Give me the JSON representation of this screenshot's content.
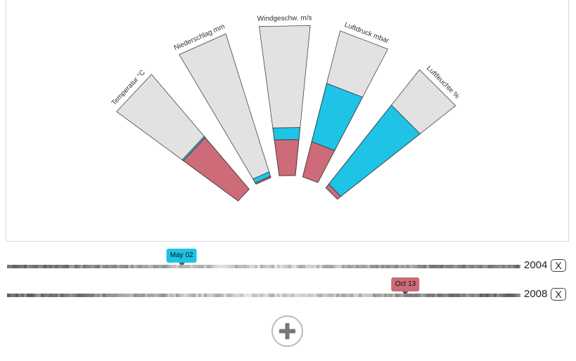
{
  "chart_data": {
    "type": "radial-bar",
    "axes": [
      {
        "label": "Temperatur °C",
        "series_a": 0.01,
        "series_b": 0.45
      },
      {
        "label": "Niederschlag mm",
        "series_a": 0.03,
        "series_b": 0.01
      },
      {
        "label": "Windgeschw. m/s",
        "series_a": 0.08,
        "series_b": 0.24
      },
      {
        "label": "Luftdruck mbar",
        "series_a": 0.4,
        "series_b": 0.24
      },
      {
        "label": "Luftfeuchte %",
        "series_a": 0.67,
        "series_b": 0.03
      }
    ],
    "series": [
      {
        "key": "series_a",
        "year": "2004",
        "date": "May 02",
        "color": "#1ec3e6"
      },
      {
        "key": "series_b",
        "year": "2008",
        "date": "Oct 13",
        "color": "#cd6b78"
      }
    ],
    "background_color": "#e2e2e2",
    "stack_order": [
      "series_b",
      "series_a"
    ],
    "scale": "fraction of bar length, 0-1"
  },
  "timelines": [
    {
      "year": "2004",
      "selected_date": "May 02",
      "selected_position": 0.34,
      "color": "#1ec3e6",
      "remove_label": "X"
    },
    {
      "year": "2008",
      "selected_date": "Oct 13",
      "selected_position": 0.776,
      "color": "#cd6b78",
      "remove_label": "X"
    }
  ],
  "add_button": {
    "icon": "plus-icon"
  }
}
